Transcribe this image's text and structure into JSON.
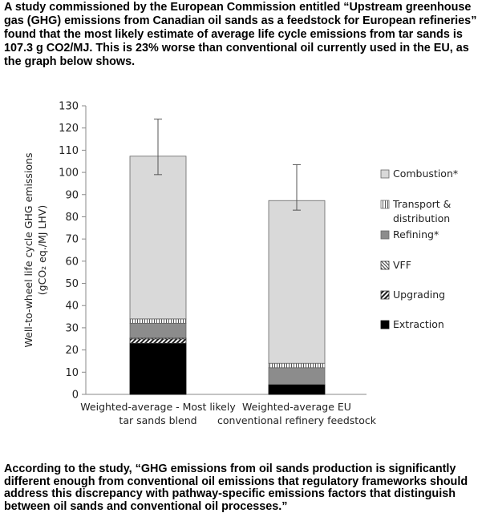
{
  "intro_text": "A study commissioned by the European Commission entitled “Upstream greenhouse gas (GHG) emissions from Canadian oil sands as a feedstock for European refineries” found that the most likely estimate of average life cycle emissions from tar sands is 107.3 g CO2/MJ. This is 23% worse than conventional oil currently used in the EU, as the graph below shows.",
  "outro_text": "According to the study, “GHG emissions from oil sands production is significantly different enough from conventional oil emissions that regulatory frameworks should address this discrepancy with pathway-specific emissions factors that distinguish between oil sands and conventional oil processes.”",
  "chart_data": {
    "type": "bar",
    "stacked": true,
    "ylabel_line1": "Well-to-wheel life cycle GHG emissions",
    "ylabel_line2": "(gCO₂ eq./MJ LHV)",
    "ylim": [
      0,
      130
    ],
    "ytick_step": 10,
    "grid": false,
    "legend_position": "right",
    "categories": [
      [
        "Weighted-average - Most likely",
        "tar sands blend"
      ],
      [
        "Weighted-average EU",
        "conventional refinery feedstock"
      ]
    ],
    "series": [
      {
        "name": "Extraction",
        "pattern": "solid-black",
        "values": [
          23,
          4.5
        ]
      },
      {
        "name": "Upgrading",
        "pattern": "diagonal-hatch",
        "values": [
          2,
          0
        ]
      },
      {
        "name": "VFF",
        "pattern": "diagonal-fine",
        "values": [
          0.5,
          0
        ]
      },
      {
        "name": "Refining*",
        "pattern": "solid-gray",
        "values": [
          6.5,
          7.5
        ]
      },
      {
        "name": "Transport & distribution",
        "pattern": "vertical-lines",
        "values": [
          2,
          2
        ]
      },
      {
        "name": "Combustion*",
        "pattern": "light-gray",
        "values": [
          73.3,
          73.3
        ]
      }
    ],
    "totals": [
      107.3,
      87.3
    ],
    "error_bars": [
      [
        99,
        124
      ],
      [
        83,
        103.5
      ]
    ]
  }
}
